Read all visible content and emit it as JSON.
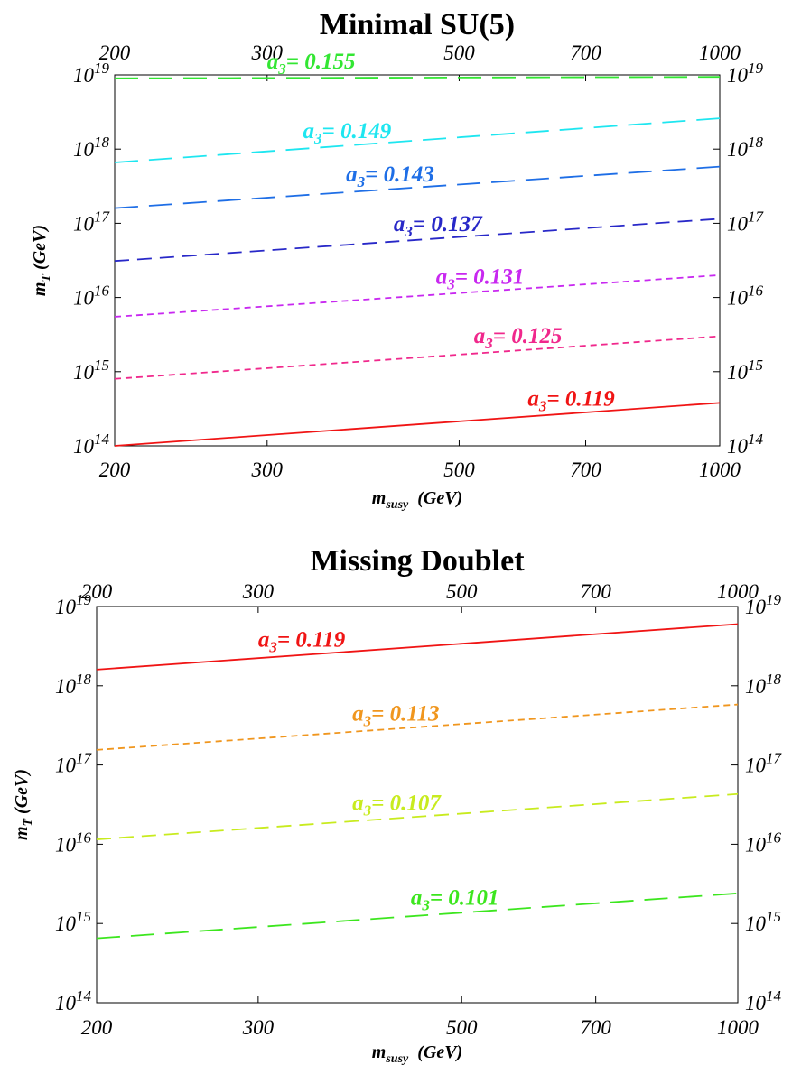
{
  "chart_data": [
    {
      "type": "line",
      "title": "Minimal SU(5)",
      "xlabel": "m_susy (GeV)",
      "ylabel": "m_T (GeV)",
      "x_scale": "log",
      "y_scale": "log",
      "xlim": [
        200,
        1000
      ],
      "ylim": [
        100000000000000.0,
        1e+19
      ],
      "x_ticks": [
        "200",
        "300",
        "500",
        "700",
        "1000"
      ],
      "y_ticks": [
        "14",
        "15",
        "16",
        "17",
        "18",
        "19"
      ],
      "grid": false,
      "legend": "none (inline curve labels)",
      "series": [
        {
          "name": "a3= 0.155",
          "color": "#33e633",
          "dash": "long",
          "x": [
            200,
            1000
          ],
          "y": [
            9e+18,
            9.4e+18
          ]
        },
        {
          "name": "a3= 0.149",
          "color": "#1ee6f0",
          "dash": "long",
          "x": [
            200,
            1000
          ],
          "y": [
            6.6e+17,
            2.6e+18
          ]
        },
        {
          "name": "a3= 0.143",
          "color": "#1e6ee6",
          "dash": "long",
          "x": [
            200,
            1000
          ],
          "y": [
            1.6e+17,
            5.8e+17
          ]
        },
        {
          "name": "a3= 0.137",
          "color": "#2828c8",
          "dash": "medium",
          "x": [
            200,
            1000
          ],
          "y": [
            3.1e+16,
            1.15e+17
          ]
        },
        {
          "name": "a3= 0.131",
          "color": "#c828f0",
          "dash": "short",
          "x": [
            200,
            1000
          ],
          "y": [
            5500000000000000.0,
            2e+16
          ]
        },
        {
          "name": "a3= 0.125",
          "color": "#f0288c",
          "dash": "short",
          "x": [
            200,
            1000
          ],
          "y": [
            800000000000000.0,
            3000000000000000.0
          ]
        },
        {
          "name": "a3= 0.119",
          "color": "#f01414",
          "dash": "solid",
          "x": [
            200,
            1000
          ],
          "y": [
            100000000000000.0,
            380000000000000.0
          ]
        }
      ]
    },
    {
      "type": "line",
      "title": "Missing Doublet",
      "xlabel": "m_susy (GeV)",
      "ylabel": "m_T (GeV)",
      "x_scale": "log",
      "y_scale": "log",
      "xlim": [
        200,
        1000
      ],
      "ylim": [
        100000000000000.0,
        1e+19
      ],
      "x_ticks": [
        "200",
        "300",
        "500",
        "700",
        "1000"
      ],
      "y_ticks": [
        "14",
        "15",
        "16",
        "17",
        "18",
        "19"
      ],
      "grid": false,
      "legend": "none (inline curve labels)",
      "series": [
        {
          "name": "a3= 0.119",
          "color": "#f01414",
          "dash": "solid",
          "x": [
            200,
            1000
          ],
          "y": [
            1.6e+18,
            6e+18
          ]
        },
        {
          "name": "a3= 0.113",
          "color": "#f0961e",
          "dash": "short",
          "x": [
            200,
            1000
          ],
          "y": [
            1.55e+17,
            5.8e+17
          ]
        },
        {
          "name": "a3= 0.107",
          "color": "#c8eb1e",
          "dash": "medium",
          "x": [
            200,
            1000
          ],
          "y": [
            1.15e+16,
            4.3e+16
          ]
        },
        {
          "name": "a3= 0.101",
          "color": "#3ce61e",
          "dash": "long",
          "x": [
            200,
            1000
          ],
          "y": [
            650000000000000.0,
            2400000000000000.0
          ]
        }
      ]
    }
  ]
}
